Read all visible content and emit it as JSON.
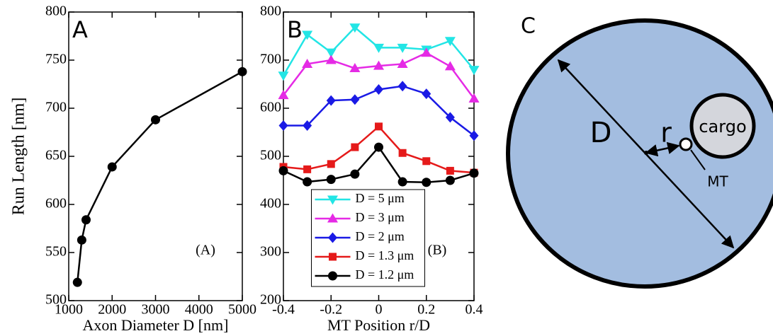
{
  "chart_data": [
    {
      "type": "line",
      "panel_label": "A",
      "annotation": "(A)",
      "xlabel": "Axon Diameter D [nm]",
      "ylabel": "Run Length [nm]",
      "x": [
        1200,
        1300,
        1400,
        2000,
        3000,
        5000
      ],
      "series": [
        {
          "color": "#000000",
          "marker": "circle",
          "values": [
            519,
            563,
            584,
            639,
            688,
            738
          ]
        }
      ],
      "xlim": [
        1000,
        5000
      ],
      "xticks": [
        1000,
        2000,
        3000,
        4000,
        5000
      ],
      "ylim": [
        500,
        800
      ],
      "yticks": [
        500,
        550,
        600,
        650,
        700,
        750,
        800
      ]
    },
    {
      "type": "line",
      "panel_label": "B",
      "annotation": "(B)",
      "xlabel": "MT Position r/D",
      "x": [
        -0.4,
        -0.3,
        -0.2,
        -0.1,
        0,
        0.1,
        0.2,
        0.3,
        0.4
      ],
      "series": [
        {
          "name": "D = 5 μm",
          "color": "#22e5e5",
          "marker": "triangle-down",
          "values": [
            668,
            753,
            716,
            768,
            726,
            726,
            722,
            740,
            680
          ]
        },
        {
          "name": "D = 3 μm",
          "color": "#e52ae5",
          "marker": "triangle-up",
          "values": [
            627,
            692,
            700,
            683,
            688,
            692,
            715,
            687,
            620
          ]
        },
        {
          "name": "D = 2 μm",
          "color": "#1a1ae5",
          "marker": "diamond",
          "values": [
            564,
            564,
            616,
            618,
            639,
            646,
            630,
            581,
            543
          ]
        },
        {
          "name": "D = 1.3 μm",
          "color": "#e51a1a",
          "marker": "square",
          "values": [
            478,
            473,
            484,
            519,
            562,
            507,
            490,
            470,
            466
          ]
        },
        {
          "name": "D = 1.2 μm",
          "color": "#000000",
          "marker": "circle",
          "values": [
            470,
            447,
            452,
            463,
            519,
            447,
            446,
            450,
            465
          ]
        }
      ],
      "xlim": [
        -0.4,
        0.4
      ],
      "xticks": [
        -0.4,
        -0.2,
        0,
        0.2,
        0.4
      ],
      "ylim": [
        200,
        800
      ],
      "yticks": [
        200,
        300,
        400,
        500,
        600,
        700,
        800
      ],
      "legend": "lower center"
    }
  ],
  "diagram": {
    "panel_label": "C",
    "diameter_label": "D",
    "radius_label": "r",
    "cargo_label": "cargo",
    "mt_label": "MT"
  }
}
